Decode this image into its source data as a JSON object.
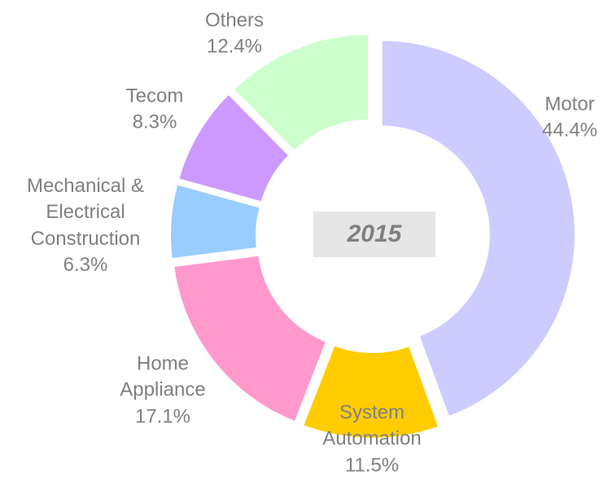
{
  "chart_data": {
    "type": "donut",
    "center_label": "2015",
    "categories": [
      "Motor",
      "System Automation",
      "Home Appliance",
      "Mechanical & Electrical Construction",
      "Tecom",
      "Others"
    ],
    "values": [
      44.4,
      11.5,
      17.1,
      6.3,
      8.3,
      12.4
    ],
    "value_labels": [
      "44.4%",
      "11.5%",
      "17.1%",
      "6.3%",
      "8.3%",
      "12.4%"
    ],
    "colors": [
      "#ccccff",
      "#ffcc00",
      "#ff99cc",
      "#99ccff",
      "#cc99ff",
      "#ccffcc"
    ]
  }
}
